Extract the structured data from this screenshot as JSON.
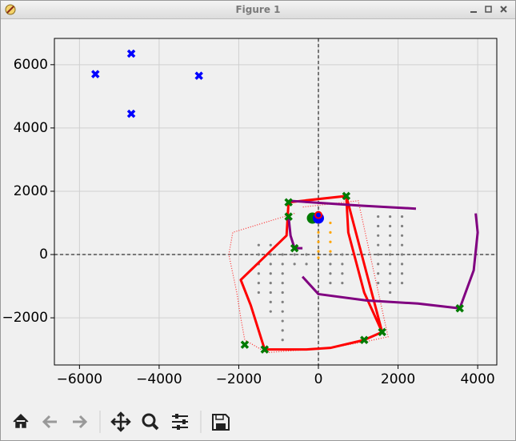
{
  "window": {
    "title": "Figure 1"
  },
  "chart_data": {
    "type": "scatter",
    "xlim": [
      -6630,
      4480
    ],
    "ylim": [
      -3490,
      6830
    ],
    "xticks": [
      {
        "value": -6000,
        "label": "−6000"
      },
      {
        "value": -4000,
        "label": "−4000"
      },
      {
        "value": -2000,
        "label": "−2000"
      },
      0,
      2000,
      4000
    ],
    "yticks": [
      {
        "value": -2000,
        "label": "−2000"
      },
      0,
      2000,
      4000,
      6000
    ],
    "grid": true,
    "origin_lines": true,
    "series": [
      {
        "style": "dotted-line",
        "color": "#ff2a2a",
        "x": [
          -600,
          -2150,
          -2250,
          -2050,
          -1950,
          -1850,
          -1300,
          300,
          1200,
          1750,
          1000,
          -400
        ],
        "values": [
          1300,
          700,
          0,
          -1200,
          -2000,
          -2700,
          -3100,
          -2950,
          -2750,
          -2600,
          1700,
          1500
        ]
      },
      {
        "style": "dots",
        "color": "#808080",
        "x": [
          -1500,
          -1500,
          -1500,
          -1500,
          -1500,
          -1500,
          -1200,
          -1200,
          -1200,
          -1200,
          -1200,
          -1200,
          -1200,
          -1200,
          -900,
          -900,
          -900,
          -900,
          -900,
          -900,
          -900,
          -900,
          -900,
          -900,
          -600,
          -600,
          -300,
          -300,
          300,
          300,
          300,
          300,
          600,
          600,
          600,
          600,
          1500,
          1500,
          1500,
          1500,
          1500,
          1500,
          1500,
          1500,
          1800,
          1800,
          1800,
          1800,
          1800,
          1800,
          1800,
          1800,
          1800,
          2100,
          2100,
          2100,
          2100,
          2100,
          2100,
          2100,
          2100
        ],
        "values": [
          300,
          0,
          -300,
          -600,
          -900,
          -1200,
          300,
          0,
          -300,
          -600,
          -900,
          -1200,
          -1500,
          -1800,
          0,
          -300,
          -600,
          -900,
          -1200,
          -1500,
          -1800,
          -2100,
          -2400,
          -2700,
          0,
          -300,
          0,
          -300,
          0,
          -300,
          -600,
          -900,
          0,
          -300,
          -600,
          -900,
          1200,
          900,
          600,
          300,
          0,
          -300,
          -600,
          -900,
          1200,
          900,
          600,
          300,
          0,
          -300,
          -600,
          -900,
          -1200,
          1200,
          900,
          600,
          300,
          0,
          -300,
          -600,
          -900
        ]
      },
      {
        "style": "line",
        "color": "#ff0000",
        "x": [
          -750,
          -800,
          -1950,
          -1700,
          -1350,
          -300,
          300,
          1150,
          1600,
          700,
          -750
        ],
        "values": [
          1650,
          600,
          -800,
          -1600,
          -3000,
          -3000,
          -2950,
          -2700,
          -2450,
          1850,
          1650
        ]
      },
      {
        "style": "line",
        "color": "#ff0000",
        "x": [
          700,
          750,
          1150,
          1600
        ],
        "values": [
          1850,
          700,
          -1200,
          -2450
        ]
      },
      {
        "style": "line",
        "color": "#800080",
        "x": [
          -750,
          1000,
          2450
        ],
        "values": [
          1700,
          1550,
          1450
        ]
      },
      {
        "style": "line",
        "color": "#800080",
        "x": [
          -400,
          0,
          1200,
          2500,
          3550,
          3900,
          4000,
          3950
        ],
        "values": [
          -700,
          -1250,
          -1450,
          -1550,
          -1700,
          -500,
          700,
          1300
        ]
      },
      {
        "style": "line",
        "color": "#800080",
        "x": [
          -750,
          -700,
          -600,
          -400
        ],
        "values": [
          1200,
          600,
          200,
          200
        ]
      },
      {
        "style": "dots",
        "color": "#ffa500",
        "x": [
          0,
          0,
          0,
          0,
          0,
          300,
          300,
          300,
          300
        ],
        "values": [
          1000,
          700,
          400,
          100,
          -100,
          1000,
          700,
          400,
          100
        ]
      },
      {
        "style": "cross",
        "color": "#007a00",
        "x": [
          -750,
          700,
          -750,
          -600,
          -1850,
          -1350,
          1150,
          1600,
          3550
        ],
        "values": [
          1650,
          1850,
          1200,
          200,
          -2850,
          -3000,
          -2700,
          -2450,
          -1700
        ]
      },
      {
        "style": "cross",
        "color": "#0000ff",
        "x": [
          -5600,
          -4700,
          -4700,
          -3000
        ],
        "values": [
          5700,
          6350,
          4450,
          5650
        ]
      },
      {
        "style": "circle",
        "color": "#007a00",
        "x": [
          -150
        ],
        "values": [
          1150
        ]
      },
      {
        "style": "circle",
        "color": "#0000ff",
        "x": [
          0
        ],
        "values": [
          1150
        ]
      },
      {
        "style": "ring",
        "color": "#ff0000",
        "x": [
          0
        ],
        "values": [
          1250
        ]
      }
    ]
  }
}
